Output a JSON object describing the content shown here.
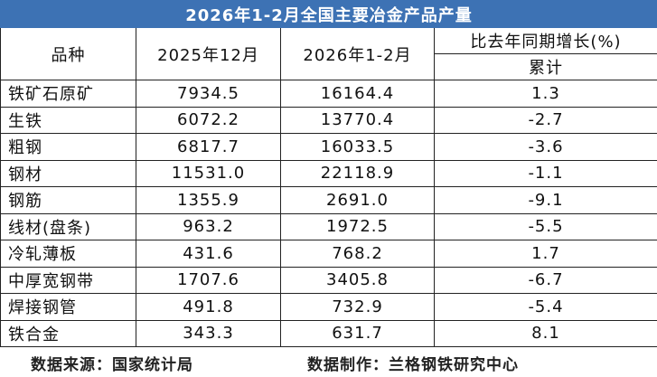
{
  "title": "2026年1-2月全国主要冶金产品产量",
  "header": {
    "item": "品种",
    "col1": "2025年12月",
    "col2": "2026年1-2月",
    "col3": "比去年同期增长(%)",
    "col3_sub": "累计"
  },
  "table": {
    "rows": [
      [
        "铁矿石原矿",
        "7934.5",
        "16164.4",
        "1.3"
      ],
      [
        "生铁",
        "6072.2",
        "13770.4",
        "-2.7"
      ],
      [
        "粗钢",
        "6817.7",
        "16033.5",
        "-3.6"
      ],
      [
        "钢材",
        "11531.0",
        "22118.9",
        "-1.1"
      ],
      [
        "钢筋",
        "1355.9",
        "2691.0",
        "-9.1"
      ],
      [
        "线材(盘条)",
        "963.2",
        "1972.5",
        "-5.5"
      ],
      [
        "冷轧薄板",
        "431.6",
        "768.2",
        "1.7"
      ],
      [
        "中厚宽钢带",
        "1707.6",
        "3405.8",
        "-6.7"
      ],
      [
        "焊接钢管",
        "491.8",
        "732.9",
        "-5.4"
      ],
      [
        "铁合金",
        "343.3",
        "631.7",
        "8.1"
      ]
    ]
  },
  "footer": {
    "source": "数据来源：国家统计局",
    "maker": "数据制作：兰格钢铁研究中心"
  }
}
